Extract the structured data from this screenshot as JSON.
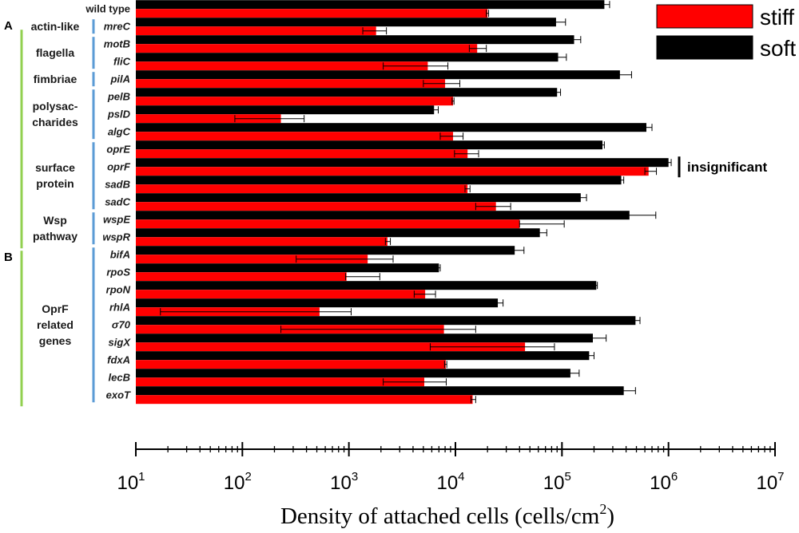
{
  "chart_data": {
    "type": "bar",
    "orientation": "horizontal",
    "xscale": "log",
    "xlim": [
      10,
      10000000
    ],
    "xlabel": "Density of attached cells (cells/cm",
    "xlabel_sup": "2",
    "xlabel_close": ")",
    "ticks": [
      {
        "base": "10",
        "exp": "1"
      },
      {
        "base": "10",
        "exp": "2"
      },
      {
        "base": "10",
        "exp": "3"
      },
      {
        "base": "10",
        "exp": "4"
      },
      {
        "base": "10",
        "exp": "5"
      },
      {
        "base": "10",
        "exp": "6"
      },
      {
        "base": "10",
        "exp": "7"
      }
    ],
    "categories": [
      "wild type",
      "mreC",
      "motB",
      "fliC",
      "pilA",
      "pelB",
      "pslD",
      "algC",
      "oprE",
      "oprF",
      "sadB",
      "sadC",
      "wspE",
      "wspR",
      "bifA",
      "rpoS",
      "rpoN",
      "rhlA",
      "σ70",
      "sigX",
      "fdxA",
      "lecB",
      "exoT"
    ],
    "series": [
      {
        "name": "soft",
        "color": "#000000",
        "values": [
          250000,
          88000,
          130000,
          92000,
          350000,
          90000,
          6300,
          620000,
          240000,
          1000000,
          360000,
          150000,
          430000,
          62000,
          36000,
          7000,
          210000,
          25000,
          490000,
          195000,
          180000,
          120000,
          380000
        ],
        "error_low": [
          225000,
          68000,
          115000,
          72000,
          265000,
          85000,
          5800,
          540000,
          225000,
          930000,
          340000,
          130000,
          95000,
          52000,
          26000,
          6700,
          205000,
          21000,
          450000,
          140000,
          165000,
          95000,
          265000
        ],
        "error_high": [
          280000,
          108000,
          150000,
          110000,
          450000,
          97000,
          6900,
          700000,
          250000,
          1060000,
          380000,
          170000,
          760000,
          72000,
          44000,
          7200,
          215000,
          28000,
          540000,
          260000,
          200000,
          145000,
          490000
        ]
      },
      {
        "name": "stiff",
        "color": "#ff0000",
        "values": [
          20000,
          1800,
          16000,
          5500,
          8000,
          9500,
          230,
          9500,
          13000,
          650000,
          13000,
          24000,
          40000,
          2300,
          1500,
          950,
          5200,
          530,
          7800,
          45000,
          8100,
          5100,
          14500
        ],
        "error_low": [
          19500,
          1350,
          13500,
          2100,
          5000,
          9300,
          85,
          7200,
          9800,
          600000,
          12300,
          15500,
          40000,
          2200,
          320,
          930,
          4100,
          17,
          230,
          5800,
          7900,
          2100,
          14000
        ],
        "error_high": [
          20500,
          2250,
          19500,
          8500,
          11000,
          9700,
          380,
          11800,
          16500,
          770000,
          13700,
          33000,
          105000,
          2450,
          2600,
          1950,
          6500,
          1050,
          15500,
          85000,
          8300,
          8200,
          15500
        ]
      }
    ],
    "groups": [
      {
        "label_lines": [
          "actin-like"
        ],
        "from": 1,
        "to": 1
      },
      {
        "label_lines": [
          "flagella"
        ],
        "from": 2,
        "to": 3
      },
      {
        "label_lines": [
          "fimbriae"
        ],
        "from": 4,
        "to": 4
      },
      {
        "label_lines": [
          "polysac-",
          "charides"
        ],
        "from": 5,
        "to": 7
      },
      {
        "label_lines": [
          "surface",
          "protein"
        ],
        "from": 8,
        "to": 11
      },
      {
        "label_lines": [
          "Wsp",
          "pathway"
        ],
        "from": 12,
        "to": 13
      },
      {
        "label_lines": [
          "OprF",
          "related",
          "genes"
        ],
        "from": 14,
        "to": 22
      }
    ],
    "panels": [
      {
        "label": "A",
        "from": 0,
        "to": 13
      },
      {
        "label": "B",
        "from": 14,
        "to": 22
      }
    ],
    "annotation": {
      "text": "insignificant",
      "target": "oprF"
    },
    "legend": {
      "position": "top-right",
      "entries": [
        "stiff",
        "soft"
      ]
    },
    "colors": {
      "group_bar": "#92d050",
      "gene_bar": "#5b9bd5",
      "stiff": "#ff0000",
      "soft": "#000000"
    }
  }
}
